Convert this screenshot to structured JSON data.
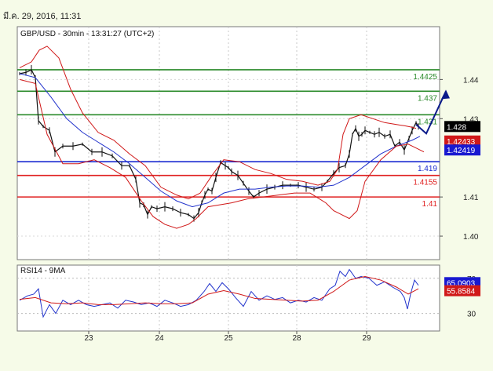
{
  "page": {
    "date_time": "มี.ค. 29, 2016, 11:31"
  },
  "chart_data": [
    {
      "type": "line",
      "title": "GBP/USD - 30min - 13:31:27 (UTC+2)",
      "x_ticks": [
        "23",
        "24",
        "25",
        "28",
        "29"
      ],
      "ylim": [
        1.394,
        1.4535
      ],
      "y_ticks": [
        {
          "value": 1.44,
          "label": "1.44"
        },
        {
          "value": 1.43,
          "label": "1.43"
        },
        {
          "value": 1.41,
          "label": "1.41"
        },
        {
          "value": 1.4,
          "label": "1.40"
        }
      ],
      "horizontal_levels": [
        {
          "value": 1.4425,
          "label": "1.4425",
          "color": "#2a8a2a"
        },
        {
          "value": 1.437,
          "label": "1.437",
          "color": "#2a8a2a"
        },
        {
          "value": 1.431,
          "label": "1.431",
          "color": "#2a8a2a"
        },
        {
          "value": 1.419,
          "label": "1.419",
          "color": "#1a2ad0"
        },
        {
          "value": 1.4155,
          "label": "1.4155",
          "color": "#e02020"
        },
        {
          "value": 1.41,
          "label": "1.41",
          "color": "#e02020"
        }
      ],
      "price_badges": [
        {
          "value": 1.428,
          "label": "1.428",
          "color": "#000000"
        },
        {
          "value": 1.4243,
          "label": "1.42433",
          "color": "#d01818"
        },
        {
          "value": 1.422,
          "label": "1.42419",
          "color": "#1818d0"
        }
      ],
      "series": [
        {
          "name": "Price",
          "x": [
            0,
            8,
            15,
            20,
            24,
            30,
            38,
            45,
            55,
            68,
            80,
            92,
            105,
            118,
            130,
            140,
            148,
            153,
            158,
            163,
            168,
            175,
            185,
            195,
            205,
            215,
            222,
            228,
            232,
            236,
            240,
            245,
            250,
            256,
            262,
            266,
            270,
            278,
            285,
            292,
            298,
            305,
            315,
            325,
            335,
            345,
            355,
            365,
            375,
            385,
            392,
            400,
            407,
            415,
            420,
            424,
            428,
            432,
            436,
            440,
            446,
            452,
            458,
            465,
            472,
            478,
            484,
            490,
            496,
            500,
            505,
            508
          ],
          "y": [
            1.4415,
            1.4418,
            1.4425,
            1.4405,
            1.4295,
            1.428,
            1.427,
            1.4215,
            1.423,
            1.423,
            1.4235,
            1.4215,
            1.4215,
            1.4205,
            1.418,
            1.418,
            1.4145,
            1.4085,
            1.408,
            1.4055,
            1.4075,
            1.407,
            1.4075,
            1.407,
            1.406,
            1.4055,
            1.4045,
            1.406,
            1.4085,
            1.4105,
            1.412,
            1.4115,
            1.415,
            1.4188,
            1.418,
            1.4175,
            1.4165,
            1.4155,
            1.4135,
            1.4115,
            1.41,
            1.411,
            1.412,
            1.4125,
            1.413,
            1.413,
            1.413,
            1.4125,
            1.412,
            1.4125,
            1.414,
            1.416,
            1.4175,
            1.418,
            1.421,
            1.426,
            1.4275,
            1.4255,
            1.426,
            1.427,
            1.4265,
            1.426,
            1.4265,
            1.4255,
            1.426,
            1.423,
            1.424,
            1.422,
            1.425,
            1.427,
            1.429,
            1.428
          ]
        },
        {
          "name": "Moving average",
          "x": [
            0,
            20,
            40,
            60,
            80,
            100,
            120,
            140,
            160,
            180,
            200,
            220,
            240,
            260,
            280,
            300,
            320,
            340,
            360,
            380,
            400,
            420,
            440,
            460,
            480,
            500,
            510
          ],
          "y": [
            1.4415,
            1.4405,
            1.4355,
            1.43,
            1.4265,
            1.424,
            1.4215,
            1.4185,
            1.415,
            1.4115,
            1.409,
            1.4075,
            1.4085,
            1.411,
            1.412,
            1.412,
            1.4125,
            1.4128,
            1.4128,
            1.4125,
            1.413,
            1.415,
            1.418,
            1.421,
            1.423,
            1.4245,
            1.4255
          ]
        },
        {
          "name": "Upper band",
          "x": [
            0,
            15,
            25,
            35,
            50,
            65,
            80,
            100,
            120,
            140,
            160,
            180,
            200,
            215,
            230,
            245,
            260,
            280,
            300,
            320,
            340,
            360,
            380,
            395,
            405,
            412,
            420,
            435,
            450,
            465,
            480,
            490,
            500,
            505
          ],
          "y": [
            1.443,
            1.4445,
            1.4475,
            1.4485,
            1.4455,
            1.4375,
            1.4315,
            1.4265,
            1.4245,
            1.421,
            1.418,
            1.4125,
            1.4105,
            1.4095,
            1.411,
            1.4155,
            1.4195,
            1.419,
            1.417,
            1.416,
            1.4145,
            1.414,
            1.413,
            1.414,
            1.417,
            1.426,
            1.43,
            1.431,
            1.43,
            1.429,
            1.4285,
            1.4282,
            1.4278,
            1.4275
          ]
        },
        {
          "name": "Lower band",
          "x": [
            0,
            20,
            35,
            55,
            75,
            95,
            115,
            135,
            155,
            170,
            185,
            200,
            215,
            225,
            240,
            255,
            270,
            290,
            310,
            330,
            350,
            370,
            390,
            400,
            410,
            420,
            430,
            440,
            460,
            480,
            495,
            505,
            515
          ],
          "y": [
            1.44,
            1.439,
            1.426,
            1.4185,
            1.4185,
            1.4195,
            1.4175,
            1.415,
            1.409,
            1.405,
            1.403,
            1.402,
            1.403,
            1.4045,
            1.4075,
            1.408,
            1.4085,
            1.4095,
            1.41,
            1.4105,
            1.411,
            1.411,
            1.4085,
            1.4065,
            1.4055,
            1.4045,
            1.4065,
            1.414,
            1.4195,
            1.423,
            1.4235,
            1.4225,
            1.4215
          ]
        },
        {
          "name": "Projection",
          "x": [
            505,
            518,
            543
          ],
          "y": [
            1.4285,
            1.4262,
            1.437
          ]
        }
      ]
    },
    {
      "type": "line",
      "title": "RSI14 - 9MA",
      "y_ticks": [
        {
          "value": 70,
          "label": "70"
        },
        {
          "value": 30,
          "label": "30"
        }
      ],
      "ylim": [
        10,
        85
      ],
      "price_badges": [
        {
          "value": 65.0903,
          "label": "65.0903",
          "color": "#1818d0"
        },
        {
          "value": 55.8584,
          "label": "55.8584",
          "color": "#d01818"
        }
      ],
      "series": [
        {
          "name": "RSI",
          "x": [
            0,
            10,
            18,
            24,
            30,
            38,
            46,
            55,
            65,
            75,
            85,
            95,
            105,
            115,
            125,
            135,
            145,
            155,
            165,
            175,
            185,
            195,
            205,
            215,
            225,
            235,
            242,
            250,
            258,
            266,
            275,
            285,
            295,
            305,
            315,
            325,
            335,
            345,
            355,
            365,
            375,
            385,
            395,
            402,
            408,
            415,
            420,
            428,
            435,
            445,
            455,
            465,
            475,
            485,
            490,
            494,
            498,
            503,
            508
          ],
          "y": [
            45,
            50,
            52,
            58,
            26,
            40,
            30,
            45,
            40,
            45,
            40,
            38,
            40,
            42,
            36,
            45,
            43,
            40,
            42,
            38,
            45,
            42,
            38,
            40,
            45,
            55,
            64,
            55,
            65,
            58,
            48,
            38,
            55,
            45,
            50,
            46,
            48,
            42,
            45,
            43,
            48,
            45,
            58,
            62,
            78,
            72,
            80,
            70,
            72,
            70,
            62,
            66,
            60,
            55,
            48,
            35,
            52,
            68,
            62
          ]
        },
        {
          "name": "RSI MA",
          "x": [
            0,
            20,
            40,
            60,
            80,
            100,
            120,
            140,
            160,
            180,
            200,
            220,
            240,
            260,
            280,
            300,
            320,
            340,
            360,
            380,
            400,
            420,
            440,
            460,
            480,
            495,
            508
          ],
          "y": [
            46,
            48,
            42,
            41,
            42,
            40,
            40,
            41,
            42,
            41,
            41,
            42,
            52,
            56,
            52,
            47,
            46,
            45,
            44,
            45,
            55,
            68,
            72,
            68,
            60,
            52,
            58
          ]
        }
      ]
    }
  ]
}
